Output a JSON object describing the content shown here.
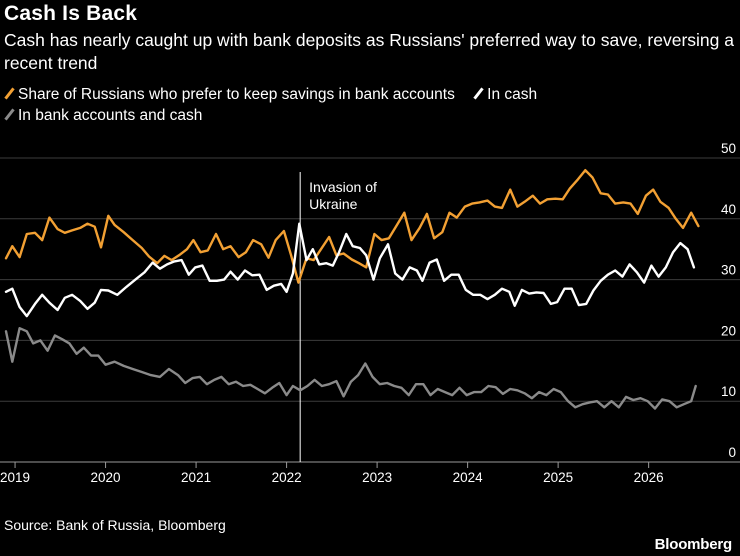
{
  "header": {
    "title": "Cash Is Back",
    "subtitle": "Cash has nearly caught up with bank deposits as Russians' preferred way to save, reversing a recent trend"
  },
  "legend": [
    {
      "label": "Share of Russians who prefer to keep savings in bank accounts",
      "color": "#f2a033"
    },
    {
      "label": "In cash",
      "color": "#ffffff"
    },
    {
      "label": "In bank accounts and cash",
      "color": "#8a8a8a"
    }
  ],
  "footer": {
    "source": "Source: Bank of Russia, Bloomberg",
    "logo": "Bloomberg"
  },
  "chart_data": {
    "type": "line",
    "x_unit": "year",
    "xlim": [
      2018.9,
      2026.7
    ],
    "ylim": [
      0,
      50
    ],
    "yticks": [
      0,
      10,
      20,
      30,
      40,
      50
    ],
    "ytick_labels": [
      "0",
      "10",
      "20",
      "30",
      "40",
      "50"
    ],
    "y_unit_label": "%",
    "xticks": [
      2019,
      2020,
      2021,
      2022,
      2023,
      2024,
      2025,
      2026
    ],
    "xtick_labels": [
      "2019",
      "2020",
      "2021",
      "2022",
      "2023",
      "2024",
      "2025",
      "2026"
    ],
    "grid": true,
    "annotation": {
      "x": 2022.15,
      "label_lines": [
        "Invasion of",
        "Ukraine"
      ]
    },
    "series": [
      {
        "name": "Share of Russians who prefer to keep savings in bank accounts",
        "color": "#f2a033",
        "points": [
          [
            2018.9,
            33.5
          ],
          [
            2018.97,
            35.5
          ],
          [
            2019.05,
            33.7
          ],
          [
            2019.13,
            37.5
          ],
          [
            2019.22,
            37.7
          ],
          [
            2019.3,
            36.5
          ],
          [
            2019.38,
            40.2
          ],
          [
            2019.47,
            38.3
          ],
          [
            2019.55,
            37.7
          ],
          [
            2019.63,
            38.1
          ],
          [
            2019.72,
            38.5
          ],
          [
            2019.8,
            39.2
          ],
          [
            2019.88,
            38.7
          ],
          [
            2019.95,
            35.3
          ],
          [
            2020.03,
            40.5
          ],
          [
            2020.1,
            39.0
          ],
          [
            2020.2,
            37.8
          ],
          [
            2020.3,
            36.5
          ],
          [
            2020.4,
            35.2
          ],
          [
            2020.48,
            33.8
          ],
          [
            2020.57,
            32.7
          ],
          [
            2020.65,
            33.9
          ],
          [
            2020.73,
            33.2
          ],
          [
            2020.82,
            34.1
          ],
          [
            2020.9,
            35.0
          ],
          [
            2020.97,
            36.5
          ],
          [
            2021.05,
            34.5
          ],
          [
            2021.13,
            34.8
          ],
          [
            2021.22,
            37.5
          ],
          [
            2021.3,
            35.0
          ],
          [
            2021.38,
            35.5
          ],
          [
            2021.47,
            33.7
          ],
          [
            2021.55,
            34.5
          ],
          [
            2021.63,
            36.5
          ],
          [
            2021.72,
            35.8
          ],
          [
            2021.8,
            33.6
          ],
          [
            2021.88,
            36.5
          ],
          [
            2021.97,
            38.0
          ],
          [
            2022.05,
            34.0
          ],
          [
            2022.13,
            29.5
          ],
          [
            2022.22,
            33.5
          ],
          [
            2022.3,
            33.2
          ],
          [
            2022.38,
            35.0
          ],
          [
            2022.47,
            37.0
          ],
          [
            2022.55,
            34.0
          ],
          [
            2022.63,
            34.3
          ],
          [
            2022.72,
            33.3
          ],
          [
            2022.8,
            32.7
          ],
          [
            2022.88,
            32.0
          ],
          [
            2022.97,
            37.5
          ],
          [
            2023.05,
            36.5
          ],
          [
            2023.13,
            36.8
          ],
          [
            2023.22,
            39.0
          ],
          [
            2023.3,
            41.0
          ],
          [
            2023.38,
            36.5
          ],
          [
            2023.47,
            38.5
          ],
          [
            2023.55,
            40.8
          ],
          [
            2023.63,
            36.8
          ],
          [
            2023.72,
            37.8
          ],
          [
            2023.8,
            41.0
          ],
          [
            2023.88,
            40.2
          ],
          [
            2023.97,
            42.0
          ],
          [
            2024.05,
            42.5
          ],
          [
            2024.13,
            42.7
          ],
          [
            2024.22,
            43.0
          ],
          [
            2024.3,
            42.0
          ],
          [
            2024.38,
            41.8
          ],
          [
            2024.47,
            44.8
          ],
          [
            2024.55,
            42.0
          ],
          [
            2024.63,
            42.8
          ],
          [
            2024.72,
            43.8
          ],
          [
            2024.8,
            42.5
          ],
          [
            2024.88,
            43.2
          ],
          [
            2024.97,
            43.3
          ],
          [
            2025.05,
            43.2
          ],
          [
            2025.13,
            45.0
          ],
          [
            2025.22,
            46.5
          ],
          [
            2025.3,
            48.0
          ],
          [
            2025.38,
            46.8
          ],
          [
            2025.47,
            44.2
          ],
          [
            2025.55,
            44.0
          ],
          [
            2025.63,
            42.5
          ],
          [
            2025.72,
            42.7
          ],
          [
            2025.8,
            42.5
          ],
          [
            2025.88,
            40.8
          ],
          [
            2025.97,
            43.8
          ],
          [
            2026.05,
            44.8
          ],
          [
            2026.13,
            42.8
          ],
          [
            2026.22,
            41.8
          ],
          [
            2026.3,
            40.0
          ],
          [
            2026.38,
            38.5
          ],
          [
            2026.47,
            41.0
          ],
          [
            2026.55,
            38.8
          ]
        ]
      },
      {
        "name": "In cash",
        "color": "#ffffff",
        "points": [
          [
            2018.9,
            28.0
          ],
          [
            2018.97,
            28.5
          ],
          [
            2019.05,
            25.5
          ],
          [
            2019.13,
            24.0
          ],
          [
            2019.22,
            26.0
          ],
          [
            2019.3,
            27.5
          ],
          [
            2019.38,
            26.2
          ],
          [
            2019.47,
            25.0
          ],
          [
            2019.55,
            27.0
          ],
          [
            2019.63,
            27.5
          ],
          [
            2019.72,
            26.5
          ],
          [
            2019.8,
            25.2
          ],
          [
            2019.88,
            26.2
          ],
          [
            2019.95,
            28.3
          ],
          [
            2020.03,
            28.2
          ],
          [
            2020.13,
            27.5
          ],
          [
            2020.23,
            28.8
          ],
          [
            2020.33,
            30.0
          ],
          [
            2020.43,
            31.2
          ],
          [
            2020.52,
            32.8
          ],
          [
            2020.6,
            31.8
          ],
          [
            2020.68,
            32.5
          ],
          [
            2020.76,
            33.0
          ],
          [
            2020.84,
            33.2
          ],
          [
            2020.92,
            30.8
          ],
          [
            2020.99,
            32.0
          ],
          [
            2021.07,
            32.3
          ],
          [
            2021.15,
            29.8
          ],
          [
            2021.23,
            29.8
          ],
          [
            2021.31,
            30.0
          ],
          [
            2021.38,
            31.3
          ],
          [
            2021.46,
            30.0
          ],
          [
            2021.54,
            31.5
          ],
          [
            2021.62,
            30.7
          ],
          [
            2021.7,
            30.8
          ],
          [
            2021.78,
            28.3
          ],
          [
            2021.86,
            29.0
          ],
          [
            2021.94,
            29.3
          ],
          [
            2022.0,
            28.0
          ],
          [
            2022.07,
            31.0
          ],
          [
            2022.14,
            39.2
          ],
          [
            2022.22,
            33.2
          ],
          [
            2022.29,
            35.0
          ],
          [
            2022.36,
            32.5
          ],
          [
            2022.44,
            32.7
          ],
          [
            2022.51,
            32.3
          ],
          [
            2022.58,
            34.5
          ],
          [
            2022.66,
            37.5
          ],
          [
            2022.73,
            35.5
          ],
          [
            2022.81,
            35.2
          ],
          [
            2022.88,
            34.0
          ],
          [
            2022.96,
            30.0
          ],
          [
            2023.03,
            33.5
          ],
          [
            2023.12,
            35.8
          ],
          [
            2023.2,
            31.0
          ],
          [
            2023.28,
            30.0
          ],
          [
            2023.36,
            32.0
          ],
          [
            2023.44,
            31.5
          ],
          [
            2023.5,
            29.8
          ],
          [
            2023.58,
            32.8
          ],
          [
            2023.66,
            33.3
          ],
          [
            2023.74,
            29.8
          ],
          [
            2023.82,
            30.8
          ],
          [
            2023.9,
            30.8
          ],
          [
            2023.98,
            28.3
          ],
          [
            2024.06,
            27.5
          ],
          [
            2024.14,
            27.5
          ],
          [
            2024.22,
            26.8
          ],
          [
            2024.3,
            27.5
          ],
          [
            2024.38,
            28.5
          ],
          [
            2024.46,
            28.0
          ],
          [
            2024.52,
            25.7
          ],
          [
            2024.6,
            28.3
          ],
          [
            2024.68,
            27.7
          ],
          [
            2024.76,
            27.9
          ],
          [
            2024.84,
            27.8
          ],
          [
            2024.92,
            26.0
          ],
          [
            2024.99,
            26.3
          ],
          [
            2025.07,
            28.5
          ],
          [
            2025.15,
            28.5
          ],
          [
            2025.23,
            25.8
          ],
          [
            2025.31,
            26.0
          ],
          [
            2025.39,
            28.2
          ],
          [
            2025.47,
            29.8
          ],
          [
            2025.55,
            30.8
          ],
          [
            2025.63,
            31.5
          ],
          [
            2025.71,
            30.5
          ],
          [
            2025.79,
            32.5
          ],
          [
            2025.87,
            31.2
          ],
          [
            2025.95,
            29.5
          ],
          [
            2026.03,
            32.3
          ],
          [
            2026.11,
            30.5
          ],
          [
            2026.19,
            32.0
          ],
          [
            2026.27,
            34.5
          ],
          [
            2026.35,
            36.0
          ],
          [
            2026.43,
            35.0
          ],
          [
            2026.5,
            32.0
          ]
        ]
      },
      {
        "name": "In bank accounts and cash",
        "color": "#8a8a8a",
        "points": [
          [
            2018.9,
            21.5
          ],
          [
            2018.97,
            16.5
          ],
          [
            2019.05,
            22.0
          ],
          [
            2019.13,
            21.5
          ],
          [
            2019.2,
            19.5
          ],
          [
            2019.28,
            20.0
          ],
          [
            2019.36,
            18.3
          ],
          [
            2019.44,
            20.8
          ],
          [
            2019.52,
            20.2
          ],
          [
            2019.6,
            19.5
          ],
          [
            2019.68,
            17.8
          ],
          [
            2019.76,
            18.8
          ],
          [
            2019.84,
            17.5
          ],
          [
            2019.92,
            17.5
          ],
          [
            2020.0,
            16.0
          ],
          [
            2020.1,
            16.5
          ],
          [
            2020.2,
            15.8
          ],
          [
            2020.3,
            15.3
          ],
          [
            2020.4,
            14.8
          ],
          [
            2020.5,
            14.3
          ],
          [
            2020.6,
            14.0
          ],
          [
            2020.7,
            15.3
          ],
          [
            2020.8,
            14.3
          ],
          [
            2020.88,
            13.0
          ],
          [
            2020.96,
            13.8
          ],
          [
            2021.04,
            14.0
          ],
          [
            2021.12,
            12.8
          ],
          [
            2021.2,
            13.5
          ],
          [
            2021.28,
            14.0
          ],
          [
            2021.36,
            12.8
          ],
          [
            2021.44,
            13.2
          ],
          [
            2021.52,
            12.5
          ],
          [
            2021.6,
            12.7
          ],
          [
            2021.68,
            12.0
          ],
          [
            2021.76,
            11.3
          ],
          [
            2021.84,
            12.2
          ],
          [
            2021.92,
            13.0
          ],
          [
            2022.0,
            11.0
          ],
          [
            2022.07,
            12.5
          ],
          [
            2022.15,
            11.8
          ],
          [
            2022.23,
            12.5
          ],
          [
            2022.31,
            13.5
          ],
          [
            2022.39,
            12.5
          ],
          [
            2022.47,
            12.8
          ],
          [
            2022.55,
            13.3
          ],
          [
            2022.63,
            10.8
          ],
          [
            2022.71,
            13.2
          ],
          [
            2022.79,
            14.3
          ],
          [
            2022.87,
            16.2
          ],
          [
            2022.95,
            14.0
          ],
          [
            2023.03,
            12.8
          ],
          [
            2023.11,
            13.0
          ],
          [
            2023.19,
            12.5
          ],
          [
            2023.27,
            12.2
          ],
          [
            2023.35,
            11.0
          ],
          [
            2023.43,
            12.8
          ],
          [
            2023.51,
            12.8
          ],
          [
            2023.59,
            11.0
          ],
          [
            2023.67,
            12.0
          ],
          [
            2023.75,
            11.5
          ],
          [
            2023.83,
            11.0
          ],
          [
            2023.91,
            12.2
          ],
          [
            2023.99,
            11.0
          ],
          [
            2024.07,
            11.5
          ],
          [
            2024.15,
            11.5
          ],
          [
            2024.23,
            12.5
          ],
          [
            2024.31,
            12.3
          ],
          [
            2024.39,
            11.2
          ],
          [
            2024.47,
            12.0
          ],
          [
            2024.55,
            11.8
          ],
          [
            2024.63,
            11.3
          ],
          [
            2024.71,
            10.5
          ],
          [
            2024.79,
            11.5
          ],
          [
            2024.87,
            11.0
          ],
          [
            2024.95,
            12.0
          ],
          [
            2025.03,
            11.5
          ],
          [
            2025.11,
            10.0
          ],
          [
            2025.19,
            9.0
          ],
          [
            2025.27,
            9.5
          ],
          [
            2025.35,
            9.8
          ],
          [
            2025.43,
            10.0
          ],
          [
            2025.51,
            9.0
          ],
          [
            2025.59,
            10.0
          ],
          [
            2025.67,
            9.0
          ],
          [
            2025.75,
            10.7
          ],
          [
            2025.83,
            10.2
          ],
          [
            2025.91,
            10.5
          ],
          [
            2025.99,
            10.0
          ],
          [
            2026.07,
            8.8
          ],
          [
            2026.15,
            10.3
          ],
          [
            2026.23,
            10.0
          ],
          [
            2026.31,
            9.0
          ],
          [
            2026.39,
            9.5
          ],
          [
            2026.47,
            10.0
          ],
          [
            2026.52,
            12.5
          ]
        ]
      }
    ]
  }
}
